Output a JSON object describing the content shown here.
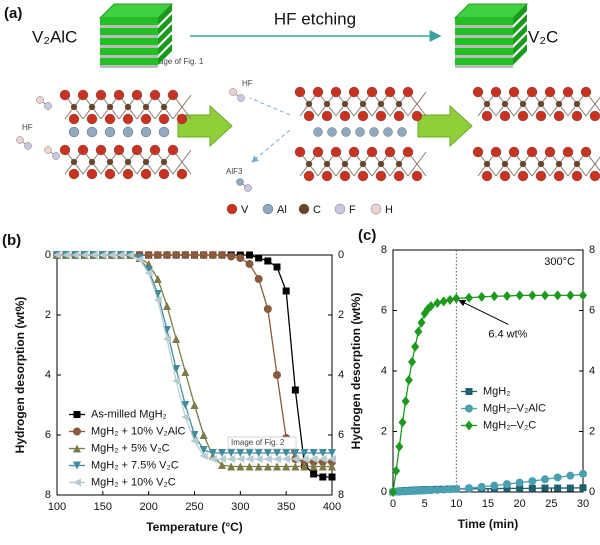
{
  "panel_a": {
    "label": "(a)",
    "left_label": "V₂AlC",
    "arrow_label": "HF etching",
    "right_label": "V₂C",
    "image_caption": "Image of Fig. 1",
    "molecules": [
      "HF",
      "HF",
      "AlF3"
    ],
    "legend": [
      "V",
      "Al",
      "C",
      "F",
      "H"
    ]
  },
  "chart_data": [
    {
      "type": "line",
      "label": "(b)",
      "x_label": "Temperature (°C)",
      "y_label": "Hydrogen desorption (wt%)",
      "annotation": "Image of Fig. 2",
      "x": [
        100,
        110,
        120,
        130,
        140,
        150,
        160,
        170,
        180,
        190,
        200,
        210,
        220,
        230,
        240,
        250,
        260,
        270,
        280,
        290,
        300,
        310,
        320,
        330,
        340,
        350,
        360,
        370,
        380,
        390,
        400
      ],
      "xlim": [
        100,
        400
      ],
      "xticks": [
        100,
        150,
        200,
        250,
        300,
        350,
        400
      ],
      "ylim": [
        8,
        0
      ],
      "yticks": [
        0,
        2,
        4,
        6,
        8
      ],
      "y2lim": [
        8,
        0
      ],
      "y2ticks": [
        0,
        2,
        4,
        6,
        8
      ],
      "grid": false,
      "legend": "lower left",
      "series": [
        {
          "name": "As-milled MgH₂",
          "color": "#000000",
          "marker": "square",
          "values": [
            0,
            0,
            0,
            0,
            0,
            0,
            0,
            0,
            0,
            0,
            0,
            0,
            0,
            0,
            0,
            0,
            0,
            0,
            0,
            0,
            0,
            0,
            0.1,
            0.2,
            0.4,
            1.2,
            4.5,
            7.0,
            7.3,
            7.4,
            7.4
          ]
        },
        {
          "name": "MgH₂ + 10% V₂AlC",
          "color": "#8b5a3c",
          "marker": "circle",
          "values": [
            0,
            0,
            0,
            0,
            0,
            0,
            0,
            0,
            0,
            0,
            0,
            0,
            0,
            0,
            0,
            0,
            0,
            0,
            0,
            0.05,
            0.1,
            0.3,
            0.8,
            1.8,
            4.0,
            6.1,
            6.8,
            6.9,
            6.9,
            6.9,
            6.9
          ]
        },
        {
          "name": "MgH₂ + 5% V₂C",
          "color": "#7d7a45",
          "marker": "triangle-up",
          "values": [
            0,
            0,
            0,
            0,
            0,
            0,
            0,
            0,
            0,
            0.1,
            0.3,
            0.8,
            1.7,
            2.8,
            3.9,
            5.0,
            6.0,
            6.7,
            7.0,
            7.05,
            7.05,
            7.05,
            7.05,
            7.05,
            7.05,
            7.05,
            7.05,
            7.05,
            7.05,
            7.05,
            7.05
          ]
        },
        {
          "name": "MgH₂ + 7.5% V₂C",
          "color": "#3f8c9c",
          "marker": "triangle-down",
          "values": [
            0,
            0,
            0,
            0,
            0,
            0,
            0,
            0,
            0,
            0.1,
            0.5,
            1.3,
            2.5,
            3.8,
            5.0,
            6.0,
            6.5,
            6.6,
            6.6,
            6.6,
            6.6,
            6.6,
            6.6,
            6.6,
            6.6,
            6.6,
            6.6,
            6.6,
            6.6,
            6.6,
            6.6
          ]
        },
        {
          "name": "MgH₂ + 10% V₂C",
          "color": "#b7ccd0",
          "marker": "triangle-left",
          "values": [
            0,
            0,
            0,
            0,
            0,
            0,
            0,
            0,
            0,
            0.15,
            0.6,
            1.5,
            2.8,
            4.2,
            5.4,
            6.2,
            6.7,
            6.8,
            6.8,
            6.8,
            6.8,
            6.8,
            6.8,
            6.8,
            6.8,
            6.8,
            6.8,
            6.8,
            6.8,
            6.8,
            6.8
          ]
        }
      ]
    },
    {
      "type": "line",
      "label": "(c)",
      "x_label": "Time (min)",
      "y_label": "Hydrogen desorption (wt%)",
      "condition": "300°C",
      "annotation": "6.4 wt%",
      "vline": 10,
      "x": [
        0,
        0.5,
        1,
        1.5,
        2,
        2.5,
        3,
        3.5,
        4,
        4.5,
        5,
        5.5,
        6,
        7,
        8,
        9,
        10,
        12,
        14,
        16,
        18,
        20,
        22,
        24,
        26,
        28,
        30
      ],
      "xlim": [
        0,
        30
      ],
      "xticks": [
        0,
        5,
        10,
        15,
        20,
        25,
        30
      ],
      "ylim": [
        0,
        8
      ],
      "yticks": [
        0,
        2,
        4,
        6,
        8
      ],
      "y2lim": [
        0,
        8
      ],
      "y2ticks": [
        0,
        2,
        4,
        6,
        8
      ],
      "grid": false,
      "legend": "center right",
      "series": [
        {
          "name": "MgH₂",
          "color": "#1f5f6f",
          "marker": "square",
          "values": [
            0,
            0.02,
            0.03,
            0.04,
            0.05,
            0.05,
            0.06,
            0.06,
            0.07,
            0.07,
            0.08,
            0.08,
            0.08,
            0.09,
            0.09,
            0.1,
            0.1,
            0.1,
            0.11,
            0.11,
            0.12,
            0.12,
            0.12,
            0.13,
            0.13,
            0.13,
            0.14
          ]
        },
        {
          "name": "MgH₂–V₂AlC",
          "color": "#4aa0b0",
          "marker": "circle",
          "values": [
            0,
            0.01,
            0.01,
            0.02,
            0.02,
            0.03,
            0.03,
            0.04,
            0.04,
            0.05,
            0.05,
            0.06,
            0.06,
            0.07,
            0.08,
            0.09,
            0.1,
            0.13,
            0.17,
            0.21,
            0.26,
            0.31,
            0.36,
            0.42,
            0.48,
            0.54,
            0.6
          ]
        },
        {
          "name": "MgH₂–V₂C",
          "color": "#1b9a1b",
          "marker": "diamond",
          "values": [
            0,
            0.7,
            1.5,
            2.3,
            3.0,
            3.7,
            4.3,
            4.8,
            5.3,
            5.6,
            5.9,
            6.05,
            6.15,
            6.25,
            6.3,
            6.35,
            6.4,
            6.42,
            6.45,
            6.47,
            6.48,
            6.5,
            6.5,
            6.5,
            6.5,
            6.5,
            6.5
          ]
        }
      ]
    }
  ]
}
